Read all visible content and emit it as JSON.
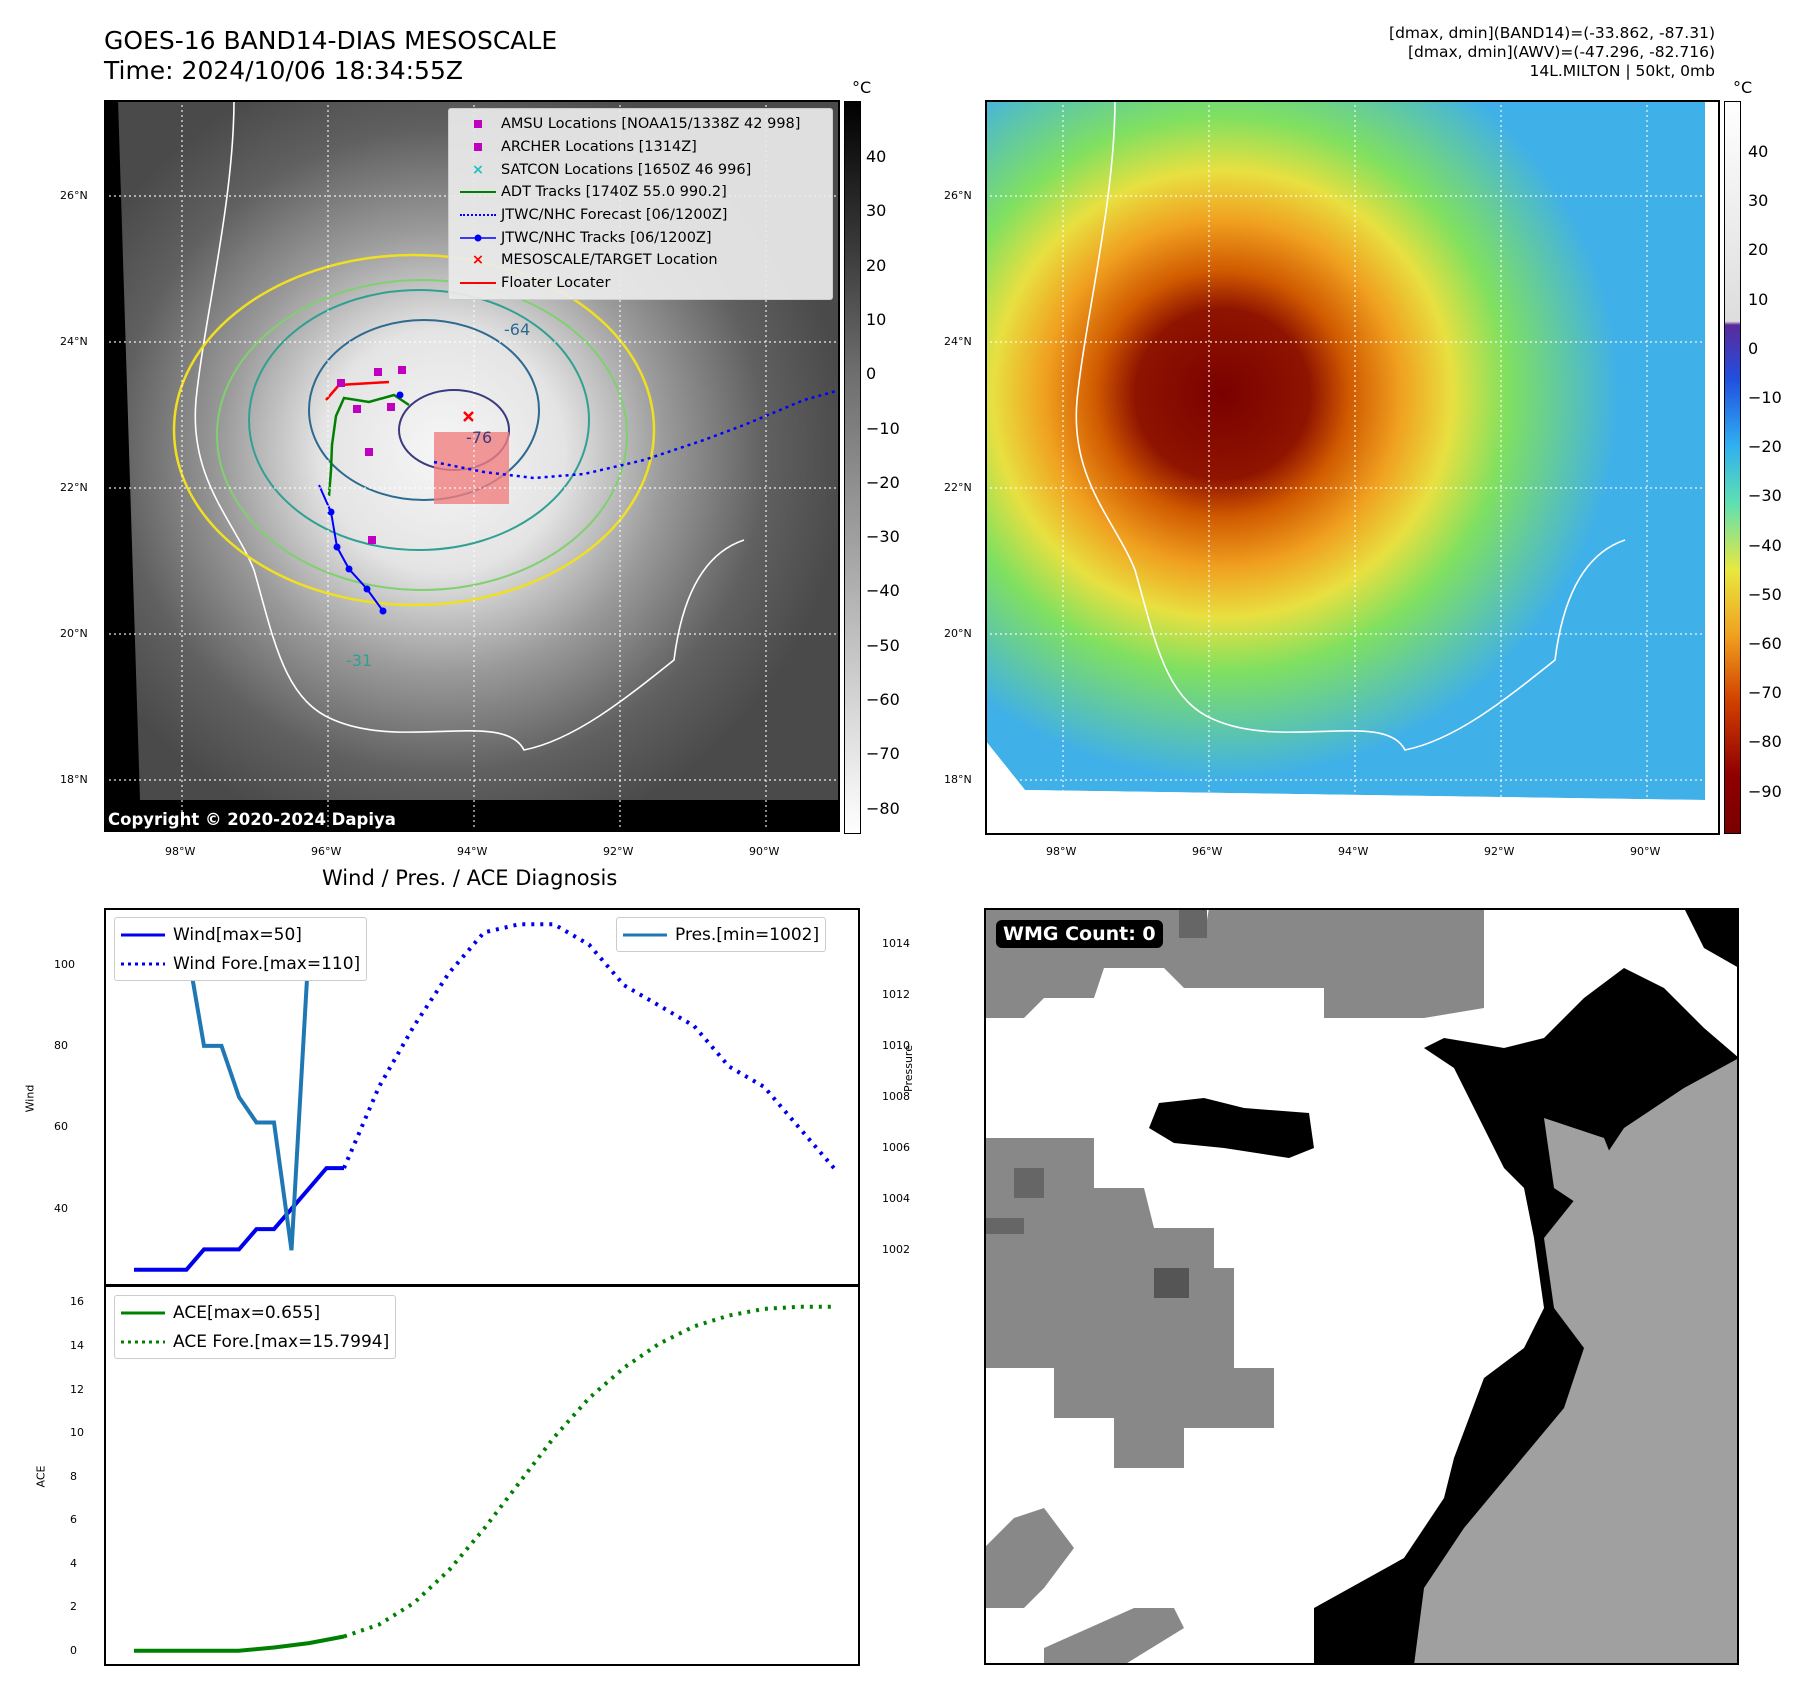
{
  "header": {
    "title_line1": "GOES-16 BAND14-DIAS MESOSCALE",
    "title_line2": "Time: 2024/10/06 18:34:55Z",
    "info_line1": "[dmax, dmin](BAND14)=(-33.862, -87.31)",
    "info_line2": "[dmax, dmin](AWV)=(-47.296, -82.716)",
    "info_line3": "14L.MILTON | 50kt, 0mb"
  },
  "map": {
    "lat_ticks": [
      "26°N",
      "24°N",
      "22°N",
      "20°N",
      "18°N"
    ],
    "lon_ticks": [
      "98°W",
      "96°W",
      "94°W",
      "92°W",
      "90°W"
    ],
    "copyright": "Copyright © 2020-2024 Dapiya",
    "legend": [
      {
        "label": "AMSU Locations [NOAA15/1338Z 42 998]",
        "symbol": "square",
        "color": "#c000c0"
      },
      {
        "label": "ARCHER Locations [1314Z]",
        "symbol": "square",
        "color": "#c000c0"
      },
      {
        "label": "SATCON Locations [1650Z 46 996]",
        "symbol": "x",
        "color": "#20c0c0"
      },
      {
        "label": "ADT Tracks [1740Z 55.0 990.2]",
        "symbol": "line",
        "color": "#008000"
      },
      {
        "label": "JTWC/NHC Forecast [06/1200Z]",
        "symbol": "dotted",
        "color": "#0000ff"
      },
      {
        "label": "JTWC/NHC Tracks [06/1200Z]",
        "symbol": "line-dot",
        "color": "#0000ff"
      },
      {
        "label": "MESOSCALE/TARGET Location",
        "symbol": "x",
        "color": "#ff0000"
      },
      {
        "label": "Floater Locater",
        "symbol": "line",
        "color": "#ff0000"
      }
    ],
    "contour_labels": [
      "-64",
      "-76",
      "-31"
    ],
    "colorbar_left": {
      "unit": "°C",
      "ticks": [
        "40",
        "30",
        "20",
        "10",
        "0",
        "−10",
        "−20",
        "−30",
        "−40",
        "−50",
        "−60",
        "−70",
        "−80"
      ]
    },
    "colorbar_right": {
      "unit": "°C",
      "ticks": [
        "40",
        "30",
        "20",
        "10",
        "0",
        "−10",
        "−20",
        "−30",
        "−40",
        "−50",
        "−60",
        "−70",
        "−80",
        "−90"
      ]
    }
  },
  "diagnosis": {
    "title": "Wind / Pres. / ACE Diagnosis",
    "ylabel_left": "Wind",
    "ylabel_right": "Pressure",
    "ylabel_ace": "ACE",
    "wind_ticks": [
      "100",
      "80",
      "60",
      "40"
    ],
    "pres_ticks": [
      "1014",
      "1012",
      "1010",
      "1008",
      "1006",
      "1004",
      "1002"
    ],
    "ace_ticks": [
      "16",
      "14",
      "12",
      "10",
      "8",
      "6",
      "4",
      "2",
      "0"
    ],
    "legend_wind": [
      {
        "label": "Wind[max=50]",
        "style": "solid",
        "color": "#0000ee"
      },
      {
        "label": "Wind Fore.[max=110]",
        "style": "dotted",
        "color": "#0000ee"
      }
    ],
    "legend_pres": [
      {
        "label": "Pres.[min=1002]",
        "style": "solid",
        "color": "#1f77b4"
      }
    ],
    "legend_ace": [
      {
        "label": "ACE[max=0.655]",
        "style": "solid",
        "color": "#008000"
      },
      {
        "label": "ACE Fore.[max=15.7994]",
        "style": "dotted",
        "color": "#008000"
      }
    ]
  },
  "wmg": {
    "label": "WMG Count: 0"
  },
  "chart_data": [
    {
      "type": "line",
      "title": "Wind / Pres. / ACE Diagnosis",
      "ylabel": "Wind",
      "ylim": [
        21,
        114
      ],
      "series": [
        {
          "name": "Wind[max=50]",
          "x": [
            0,
            1,
            2,
            3,
            4,
            5,
            6,
            7,
            8,
            9,
            10,
            11,
            12
          ],
          "values": [
            25,
            25,
            25,
            25,
            30,
            30,
            30,
            35,
            35,
            40,
            45,
            50,
            50
          ]
        },
        {
          "name": "Wind Fore.[max=110]",
          "x": [
            12,
            14,
            16,
            18,
            20,
            22,
            24,
            26,
            28,
            30,
            32,
            34,
            36,
            38,
            40
          ],
          "values": [
            50,
            70,
            85,
            98,
            108,
            110,
            110,
            105,
            95,
            90,
            85,
            75,
            70,
            60,
            50
          ]
        }
      ]
    },
    {
      "type": "line",
      "ylabel": "Pressure",
      "ylim": [
        1000.6,
        1015.4
      ],
      "series": [
        {
          "name": "Pres.[min=1002]",
          "x": [
            0,
            1,
            2,
            3,
            4,
            5,
            6,
            7,
            8,
            9,
            10,
            11,
            12
          ],
          "values": [
            1014,
            1014,
            1014,
            1014,
            1010,
            1010,
            1008,
            1007,
            1007,
            1002,
            1014,
            1014,
            1014
          ]
        }
      ]
    },
    {
      "type": "line",
      "ylabel": "ACE",
      "ylim": [
        -0.7,
        16.8
      ],
      "series": [
        {
          "name": "ACE[max=0.655]",
          "x": [
            0,
            3,
            6,
            8,
            10,
            12
          ],
          "values": [
            0,
            0,
            0,
            0.15,
            0.35,
            0.655
          ]
        },
        {
          "name": "ACE Fore.[max=15.7994]",
          "x": [
            12,
            14,
            16,
            18,
            20,
            22,
            24,
            26,
            28,
            30,
            32,
            34,
            36,
            38,
            40
          ],
          "values": [
            0.655,
            1.2,
            2.2,
            3.7,
            5.6,
            7.7,
            9.8,
            11.6,
            13.0,
            14.1,
            14.9,
            15.4,
            15.7,
            15.8,
            15.8
          ]
        }
      ]
    }
  ]
}
